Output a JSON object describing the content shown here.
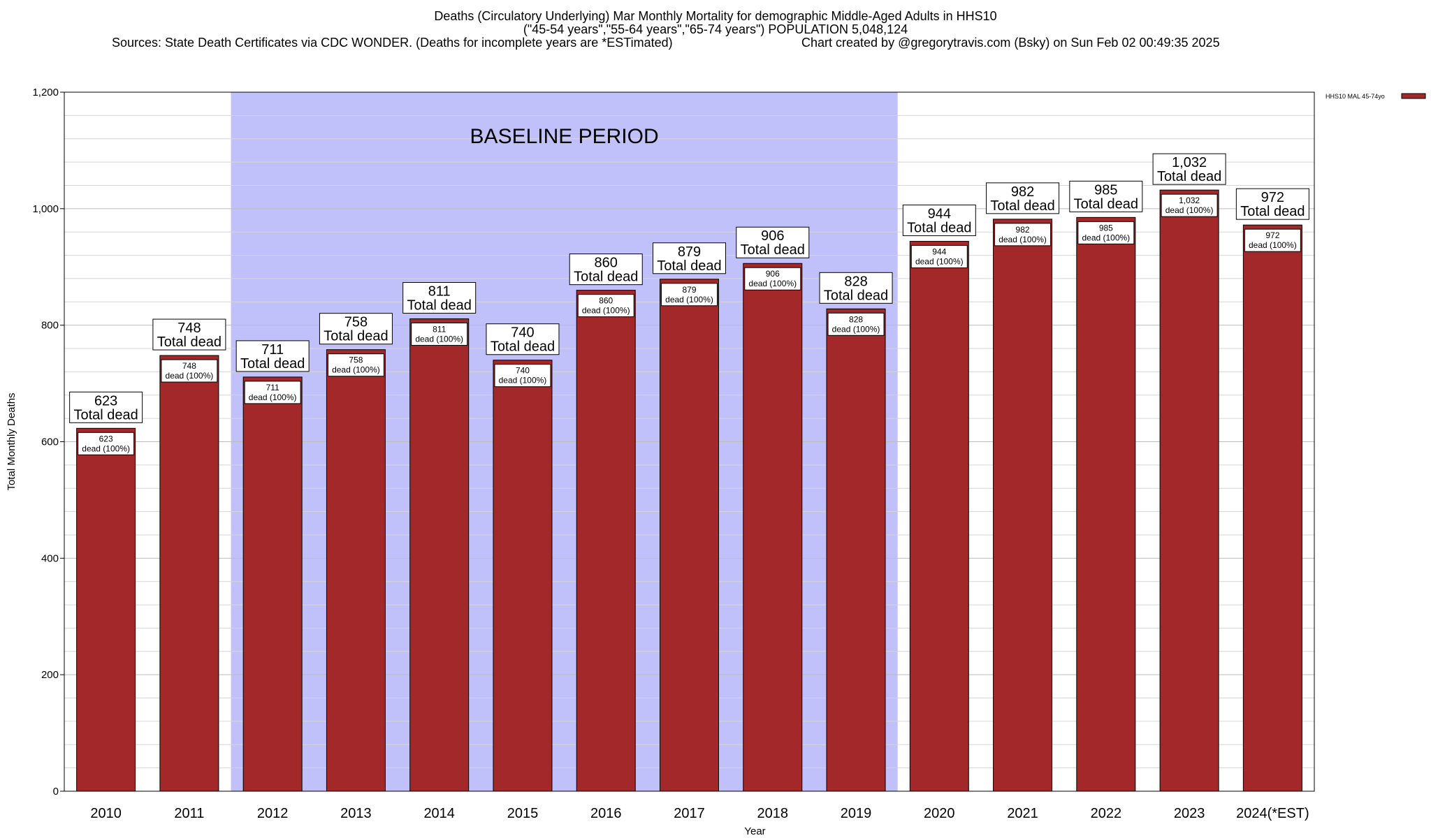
{
  "header": {
    "title": "Deaths (Circulatory Underlying) Mar Monthly Mortality for demographic Middle-Aged Adults in HHS10",
    "subtitle": "(\"45-54 years\",\"55-64 years\",\"65-74 years\") POPULATION 5,048,124",
    "sources": "Sources: State Death Certificates via CDC WONDER. (Deaths for incomplete years are *ESTimated)",
    "credit": "Chart created by @gregorytravis.com (Bsky) on Sun Feb 02 00:49:35 2025"
  },
  "chart_data": {
    "type": "bar",
    "categories": [
      "2010",
      "2011",
      "2012",
      "2013",
      "2014",
      "2015",
      "2016",
      "2017",
      "2018",
      "2019",
      "2020",
      "2021",
      "2022",
      "2023",
      "2024(*EST)"
    ],
    "series": [
      {
        "name": "HHS10 MAL 45-74yo",
        "values": [
          623,
          748,
          711,
          758,
          811,
          740,
          860,
          879,
          906,
          828,
          944,
          982,
          985,
          1032,
          972
        ]
      }
    ],
    "value_labels": [
      "623",
      "748",
      "711",
      "758",
      "811",
      "740",
      "860",
      "879",
      "906",
      "828",
      "944",
      "982",
      "985",
      "1,032",
      "972"
    ],
    "top_label_suffix": "Total dead",
    "inner_label_suffix": "dead (100%)",
    "xlabel": "Year",
    "ylabel": "Total Monthly Deaths",
    "ylim": [
      0,
      1200
    ],
    "yticks": [
      0,
      200,
      400,
      600,
      800,
      1000,
      1200
    ],
    "ytick_labels": [
      "0",
      "200",
      "400",
      "600",
      "800",
      "1,000",
      "1,200"
    ],
    "grid": true,
    "legend_position": "top-right",
    "baseline_period": {
      "label": "BASELINE PERIOD",
      "start": "2012",
      "end": "2019"
    },
    "colors": {
      "bar": "#a3282a",
      "baseline_band": "#c0c0fb",
      "grid": "#c8c8c8"
    }
  }
}
